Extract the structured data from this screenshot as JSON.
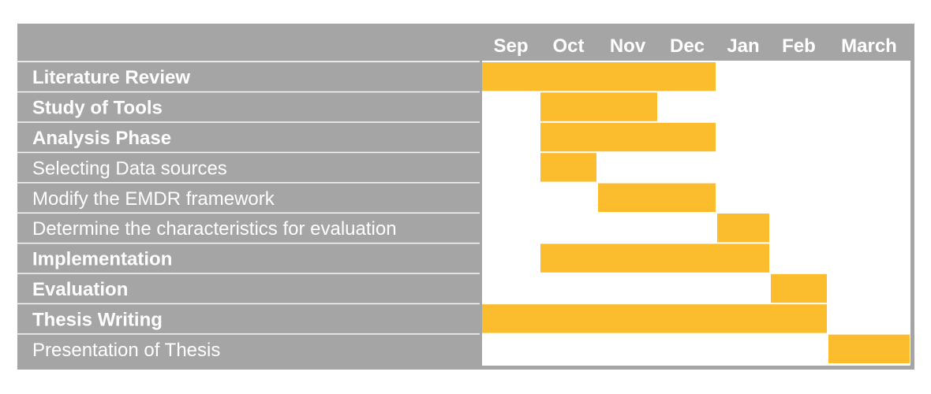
{
  "chart_data": {
    "type": "gantt",
    "months": [
      "Sep",
      "Oct",
      "Nov",
      "Dec",
      "Jan",
      "Feb",
      "March"
    ],
    "tasks": [
      {
        "label": "Literature Review",
        "bold": true,
        "start": "Sep",
        "end": "Dec"
      },
      {
        "label": "Study of Tools",
        "bold": true,
        "start": "Oct",
        "end": "Nov"
      },
      {
        "label": "Analysis Phase",
        "bold": true,
        "start": "Oct",
        "end": "Dec"
      },
      {
        "label": "Selecting Data sources",
        "bold": false,
        "start": "Oct",
        "end": "Oct"
      },
      {
        "label": "Modify the EMDR framework",
        "bold": false,
        "start": "Nov",
        "end": "Dec"
      },
      {
        "label": "Determine the characteristics for evaluation",
        "bold": false,
        "start": "Jan",
        "end": "Jan"
      },
      {
        "label": "Implementation",
        "bold": true,
        "start": "Oct",
        "end": "Jan"
      },
      {
        "label": "Evaluation",
        "bold": true,
        "start": "Feb",
        "end": "Feb"
      },
      {
        "label": "Thesis Writing",
        "bold": true,
        "start": "Sep",
        "end": "Feb"
      },
      {
        "label": "Presentation of Thesis",
        "bold": false,
        "start": "March",
        "end": "March"
      }
    ],
    "colors": {
      "bar": "#FBBC2E",
      "frame": "#A5A5A5",
      "cell": "#FFFFFF",
      "text": "#FFFFFF"
    }
  }
}
